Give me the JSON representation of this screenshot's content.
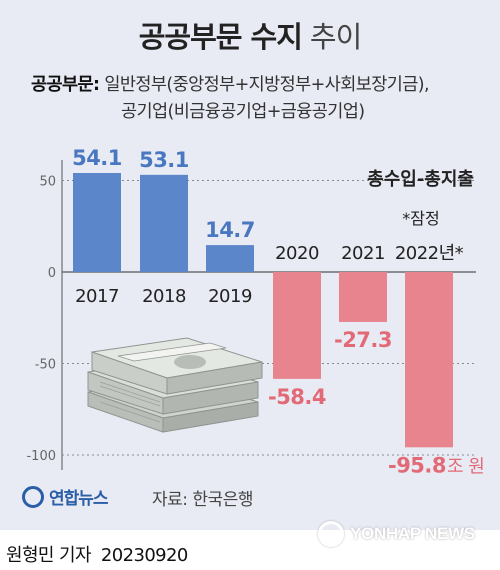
{
  "header": {
    "title_bold": "공공부문 수지",
    "title_light": "추이",
    "subtitle_key": "공공부문:",
    "subtitle_line1": "일반정부(중앙정부+지방정부+사회보장기금),",
    "subtitle_line2": "공기업(비금융공기업+금융공기업)"
  },
  "chart_data": {
    "type": "bar",
    "series_label": "총수입-총지출",
    "categories": [
      "2017",
      "2018",
      "2019",
      "2020",
      "2021",
      "2022년*"
    ],
    "values": [
      54.1,
      53.1,
      14.7,
      -58.4,
      -27.3,
      -95.8
    ],
    "value_labels": [
      "54.1",
      "53.1",
      "14.7",
      "-58.4",
      "-27.3",
      "-95.8"
    ],
    "unit_suffix": "조 원",
    "provisional_note": "*잠정",
    "yticks": [
      50,
      0,
      -50,
      -100
    ],
    "ylim": [
      -105,
      65
    ],
    "grid": "dotted",
    "colors": {
      "positive": "#5b86c9",
      "negative": "#e8848d",
      "positive_label": "#4a78c0",
      "negative_label": "#e26a76"
    }
  },
  "footer": {
    "brand": "연합뉴스",
    "source": "자료: 한국은행",
    "reporter": "원형민 기자",
    "date": "20230920",
    "watermark": "YONHAP NEWS"
  }
}
